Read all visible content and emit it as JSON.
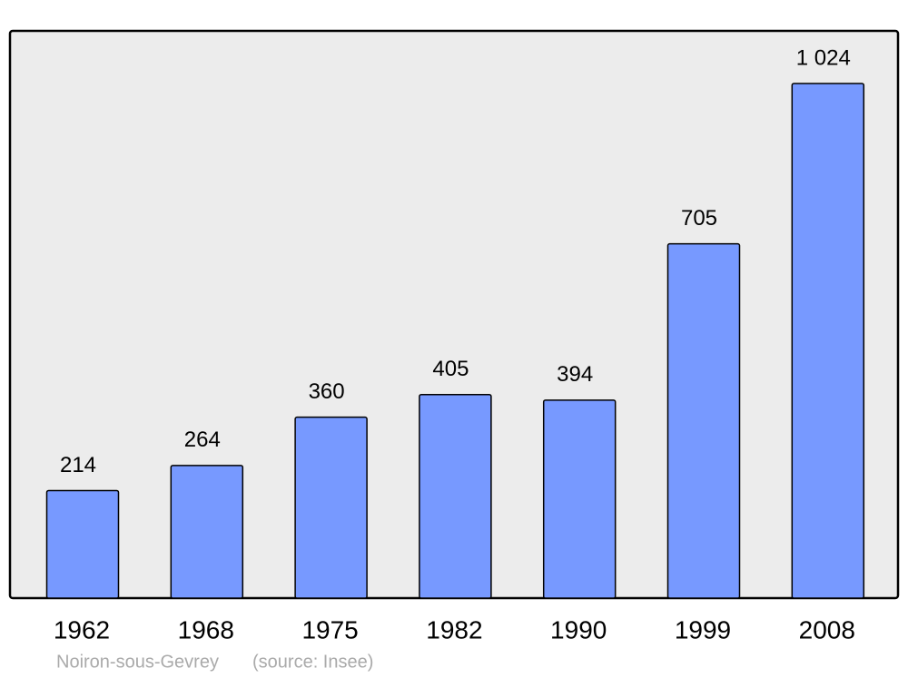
{
  "chart_data": {
    "type": "bar",
    "categories": [
      "1962",
      "1968",
      "1975",
      "1982",
      "1990",
      "1999",
      "2008"
    ],
    "values": [
      214,
      264,
      360,
      405,
      394,
      705,
      1024
    ],
    "value_labels": [
      "214",
      "264",
      "360",
      "405",
      "394",
      "705",
      "1 024"
    ],
    "color": "#7799ff",
    "place": "Noiron-sous-Gevrey",
    "source": "(source: Insee)"
  }
}
